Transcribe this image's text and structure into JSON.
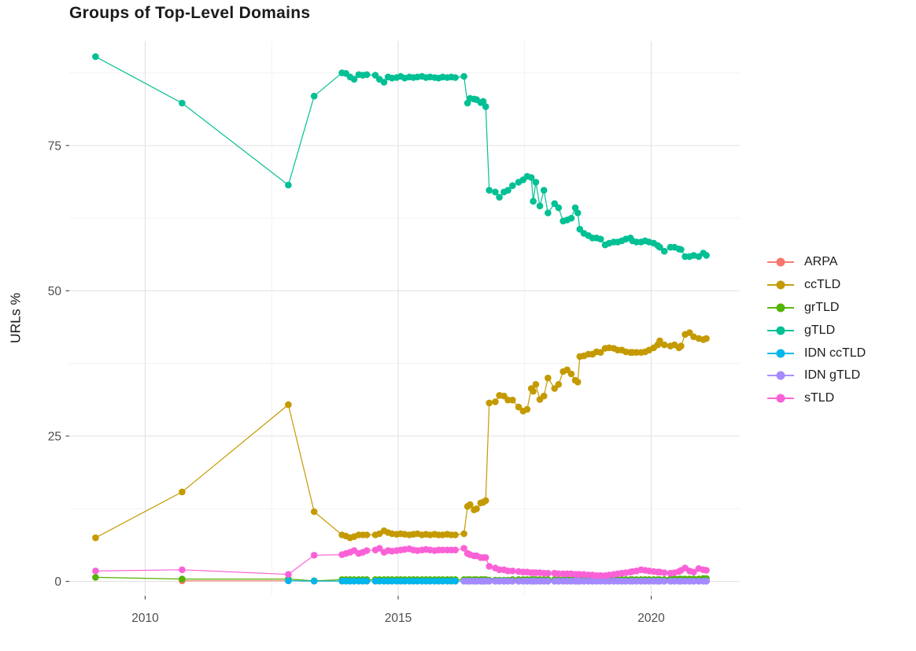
{
  "chart_data": {
    "type": "line",
    "title": "Groups of Top-Level Domains",
    "xlabel": "",
    "ylabel": "URLs %",
    "xlim": [
      2008.5,
      2021.75
    ],
    "ylim": [
      -2.5,
      93
    ],
    "xticks": [
      2010,
      2015,
      2020
    ],
    "yticks": [
      0,
      25,
      50,
      75
    ],
    "x_minor_gridlines": [
      2012.5,
      2017.5
    ],
    "y_minor_gridlines": [
      12.5,
      37.5,
      62.5,
      87.5
    ],
    "grid": "on",
    "legend_position": "right",
    "background_color": "#ffffff",
    "major_grid_color": "#e2e2e2",
    "minor_grid_color": "#efefef",
    "tick_color": "#333333",
    "tick_label_color": "#4d4d4d",
    "x": [
      2009.02,
      2010.73,
      2012.83,
      2013.34,
      2013.89,
      2013.97,
      2014.05,
      2014.13,
      2014.22,
      2014.3,
      2014.38,
      2014.55,
      2014.63,
      2014.72,
      2014.8,
      2014.88,
      2014.97,
      2015.05,
      2015.13,
      2015.22,
      2015.3,
      2015.38,
      2015.47,
      2015.55,
      2015.63,
      2015.72,
      2015.8,
      2015.88,
      2015.97,
      2016.05,
      2016.13,
      2016.3,
      2016.37,
      2016.42,
      2016.5,
      2016.55,
      2016.63,
      2016.68,
      2016.73,
      2016.8,
      2016.92,
      2017.0,
      2017.09,
      2017.17,
      2017.26,
      2017.38,
      2017.47,
      2017.55,
      2017.63,
      2017.67,
      2017.72,
      2017.8,
      2017.88,
      2017.96,
      2018.09,
      2018.17,
      2018.26,
      2018.34,
      2018.42,
      2018.5,
      2018.55,
      2018.59,
      2018.67,
      2018.76,
      2018.84,
      2018.92,
      2019.0,
      2019.09,
      2019.17,
      2019.26,
      2019.34,
      2019.42,
      2019.5,
      2019.59,
      2019.63,
      2019.71,
      2019.8,
      2019.88,
      2019.96,
      2020.05,
      2020.13,
      2020.17,
      2020.26,
      2020.38,
      2020.46,
      2020.55,
      2020.59,
      2020.67,
      2020.76,
      2020.84,
      2020.94,
      2021.03,
      2021.09
    ],
    "series": [
      {
        "name": "ARPA",
        "color": "#F8766D",
        "y": [
          null,
          0.1,
          0.1,
          0.05,
          0.05,
          0.05,
          0.05,
          0.05,
          0.05,
          0.05,
          0.05,
          0.05,
          0.05,
          0.05,
          0.05,
          0.05,
          0.05,
          0.05,
          0.05,
          0.05,
          0.05,
          0.05,
          0.05,
          0.05,
          0.05,
          0.05,
          0.05,
          0.05,
          0.05,
          0.05,
          0.05,
          0.05,
          0.05,
          0.05,
          0.05,
          0.05,
          0.05,
          0.05,
          0.05,
          0.05,
          0.05,
          0.05,
          0.05,
          0.05,
          0.05,
          0.05,
          0.05,
          0.05,
          0.05,
          0.05,
          0.05,
          0.05,
          0.05,
          0.05,
          0.05,
          0.05,
          0.05,
          0.05,
          0.05,
          0.05,
          0.05,
          0.05,
          0.05,
          0.05,
          0.05,
          0.05,
          0.05,
          0.05,
          0.05,
          0.05,
          0.05,
          0.05,
          0.05,
          0.05,
          0.05,
          0.05,
          0.05,
          0.05,
          0.05,
          0.05,
          0.05,
          0.05,
          0.05,
          0.05,
          0.05,
          0.05,
          0.05,
          0.05,
          0.05,
          0.05,
          0.05,
          0.05,
          0.05
        ]
      },
      {
        "name": "ccTLD",
        "color": "#C49A00",
        "y": [
          7.5,
          15.4,
          30.4,
          12.0,
          8.0,
          7.8,
          7.5,
          7.7,
          8.0,
          8.0,
          8.0,
          8.0,
          8.2,
          8.7,
          8.4,
          8.2,
          8.1,
          8.2,
          8.1,
          8.0,
          8.1,
          8.2,
          8.0,
          8.1,
          8.0,
          8.1,
          8.0,
          8.0,
          8.1,
          8.0,
          8.0,
          8.2,
          12.9,
          13.2,
          12.3,
          12.5,
          13.5,
          13.6,
          13.9,
          30.7,
          30.9,
          32.0,
          31.9,
          31.2,
          31.2,
          30.0,
          29.3,
          29.6,
          33.2,
          32.7,
          33.9,
          31.3,
          31.9,
          35.0,
          33.2,
          33.9,
          36.1,
          36.4,
          35.7,
          34.6,
          34.3,
          38.7,
          38.8,
          39.1,
          39.1,
          39.5,
          39.4,
          40.1,
          40.2,
          40.1,
          39.8,
          39.8,
          39.5,
          39.4,
          39.4,
          39.4,
          39.4,
          39.5,
          39.8,
          40.2,
          40.7,
          41.4,
          40.7,
          40.5,
          40.7,
          40.2,
          40.5,
          42.5,
          42.8,
          42.1,
          41.8,
          41.6,
          41.8
        ]
      },
      {
        "name": "grTLD",
        "color": "#53B400",
        "y": [
          0.7,
          0.4,
          0.4,
          0.1,
          0.3,
          0.3,
          0.3,
          0.3,
          0.3,
          0.3,
          0.3,
          0.3,
          0.3,
          0.3,
          0.3,
          0.3,
          0.3,
          0.3,
          0.3,
          0.3,
          0.3,
          0.3,
          0.3,
          0.3,
          0.3,
          0.3,
          0.3,
          0.3,
          0.3,
          0.3,
          0.3,
          0.3,
          0.3,
          0.3,
          0.3,
          0.3,
          0.3,
          0.3,
          0.3,
          0.2,
          0.2,
          0.2,
          0.2,
          0.2,
          0.3,
          0.3,
          0.3,
          0.3,
          0.3,
          0.3,
          0.3,
          0.3,
          0.3,
          0.3,
          0.3,
          0.3,
          0.3,
          0.3,
          0.3,
          0.3,
          0.3,
          0.3,
          0.3,
          0.3,
          0.3,
          0.3,
          0.3,
          0.3,
          0.3,
          0.3,
          0.3,
          0.3,
          0.3,
          0.3,
          0.3,
          0.3,
          0.3,
          0.3,
          0.3,
          0.3,
          0.3,
          0.3,
          0.3,
          0.4,
          0.4,
          0.4,
          0.4,
          0.4,
          0.4,
          0.4,
          0.4,
          0.5,
          0.5
        ]
      },
      {
        "name": "gTLD",
        "color": "#00C094",
        "y": [
          90.3,
          82.3,
          68.2,
          83.5,
          87.5,
          87.4,
          86.8,
          86.4,
          87.2,
          87.1,
          87.2,
          87.1,
          86.4,
          85.9,
          86.8,
          86.6,
          86.7,
          86.9,
          86.6,
          86.8,
          86.7,
          86.8,
          86.9,
          86.7,
          86.8,
          86.7,
          86.6,
          86.8,
          86.7,
          86.8,
          86.7,
          86.9,
          82.3,
          83.1,
          83.0,
          82.9,
          82.4,
          82.6,
          81.7,
          67.3,
          67.0,
          66.1,
          67.0,
          67.3,
          68.1,
          68.7,
          69.1,
          69.7,
          69.5,
          65.4,
          68.7,
          64.6,
          67.3,
          63.4,
          65.0,
          64.3,
          62.0,
          62.2,
          62.5,
          64.3,
          63.4,
          60.6,
          59.9,
          59.5,
          59.1,
          59.1,
          58.9,
          57.9,
          58.2,
          58.4,
          58.4,
          58.6,
          58.9,
          59.1,
          58.6,
          58.4,
          58.4,
          58.6,
          58.4,
          58.2,
          57.8,
          57.5,
          56.8,
          57.5,
          57.5,
          57.2,
          57.1,
          55.9,
          55.9,
          56.1,
          55.9,
          56.5,
          56.1
        ]
      },
      {
        "name": "IDN ccTLD",
        "color": "#00B6EB",
        "y": [
          null,
          null,
          0.1,
          0.05,
          0.05,
          0.05,
          0.05,
          0.05,
          0.05,
          0.05,
          0.05,
          0.05,
          0.05,
          0.05,
          0.05,
          0.05,
          0.05,
          0.05,
          0.05,
          0.05,
          0.05,
          0.05,
          0.05,
          0.05,
          0.05,
          0.05,
          0.05,
          0.05,
          0.05,
          0.05,
          0.05,
          0.05,
          0.05,
          0.05,
          0.05,
          0.05,
          0.05,
          0.05,
          0.05,
          0.05,
          0.05,
          0.05,
          0.05,
          0.05,
          0.05,
          0.05,
          0.05,
          0.05,
          0.05,
          0.05,
          0.05,
          0.05,
          0.05,
          0.05,
          0.05,
          0.05,
          0.05,
          0.05,
          0.05,
          0.05,
          0.05,
          0.05,
          0.05,
          0.05,
          0.05,
          0.05,
          0.05,
          0.05,
          0.05,
          0.05,
          0.05,
          0.05,
          0.05,
          0.05,
          0.05,
          0.05,
          0.05,
          0.05,
          0.05,
          0.05,
          0.05,
          0.05,
          0.05,
          0.05,
          0.05,
          0.05,
          0.05,
          0.05,
          0.05,
          0.05,
          0.05,
          0.05,
          0.05
        ]
      },
      {
        "name": "IDN gTLD",
        "color": "#A58AFF",
        "y": [
          null,
          null,
          null,
          null,
          null,
          null,
          null,
          null,
          null,
          null,
          null,
          null,
          null,
          null,
          null,
          null,
          null,
          null,
          null,
          null,
          null,
          null,
          null,
          null,
          null,
          null,
          null,
          null,
          null,
          null,
          null,
          0.03,
          0.03,
          0.03,
          0.03,
          0.03,
          0.03,
          0.03,
          0.03,
          0.03,
          0.03,
          0.03,
          0.03,
          0.03,
          0.03,
          0.03,
          0.03,
          0.03,
          0.03,
          0.03,
          0.03,
          0.03,
          0.03,
          0.03,
          0.03,
          0.03,
          0.03,
          0.03,
          0.03,
          0.03,
          0.03,
          0.03,
          0.03,
          0.03,
          0.03,
          0.03,
          0.03,
          0.03,
          0.03,
          0.03,
          0.03,
          0.03,
          0.03,
          0.03,
          0.03,
          0.03,
          0.03,
          0.03,
          0.03,
          0.03,
          0.03,
          0.03,
          0.03,
          0.03,
          0.03,
          0.03,
          0.03,
          0.03,
          0.03,
          0.03,
          0.03,
          0.03,
          0.03
        ]
      },
      {
        "name": "sTLD",
        "color": "#FB61D7",
        "y": [
          1.8,
          2.0,
          1.2,
          4.5,
          4.6,
          4.8,
          5.0,
          5.3,
          4.8,
          5.0,
          5.3,
          5.4,
          5.7,
          5.0,
          5.3,
          5.2,
          5.3,
          5.4,
          5.5,
          5.6,
          5.4,
          5.3,
          5.4,
          5.5,
          5.4,
          5.3,
          5.4,
          5.4,
          5.4,
          5.4,
          5.4,
          5.7,
          4.8,
          4.6,
          4.4,
          4.4,
          4.1,
          4.1,
          4.1,
          2.6,
          2.3,
          2.0,
          2.0,
          1.8,
          1.8,
          1.7,
          1.6,
          1.6,
          1.5,
          1.5,
          1.5,
          1.5,
          1.4,
          1.4,
          1.4,
          1.3,
          1.3,
          1.3,
          1.3,
          1.2,
          1.2,
          1.2,
          1.2,
          1.1,
          1.1,
          1.0,
          1.0,
          1.0,
          1.1,
          1.2,
          1.3,
          1.4,
          1.5,
          1.6,
          1.7,
          1.8,
          2.0,
          1.9,
          1.8,
          1.7,
          1.6,
          1.6,
          1.5,
          1.4,
          1.5,
          1.7,
          1.9,
          2.3,
          1.8,
          1.6,
          2.2,
          2.0,
          1.9
        ]
      }
    ]
  }
}
